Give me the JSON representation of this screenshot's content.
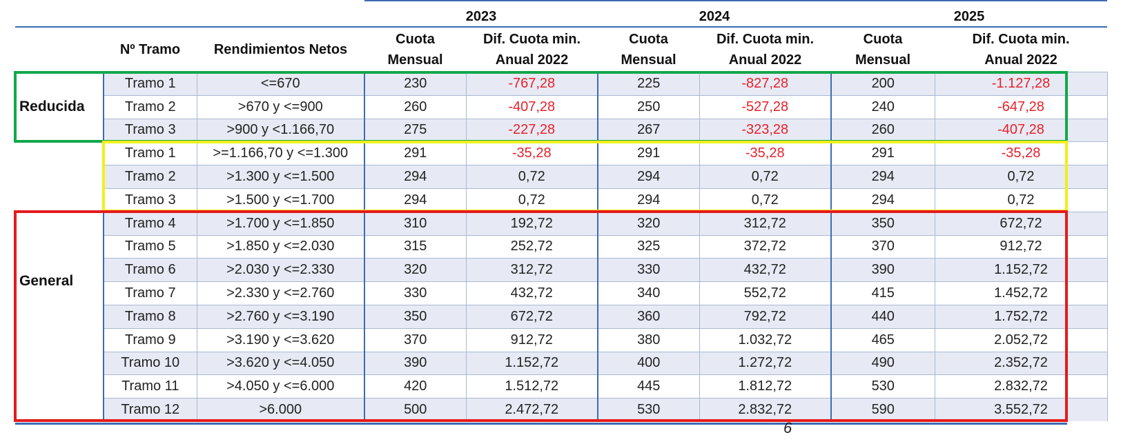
{
  "years": [
    "2023",
    "2024",
    "2025"
  ],
  "headers": {
    "tramo": "Nº Tramo",
    "rendimientos": "Rendimientos Netos",
    "cuota_l1": "Cuota",
    "cuota_l2": "Mensual",
    "dif_l1": "Dif. Cuota min.",
    "dif_l2": "Anual 2022"
  },
  "groups": {
    "reducida": "Reducida",
    "general": "General"
  },
  "rows": [
    {
      "tramo": "Tramo 1",
      "range": "<=670",
      "c2023": "230",
      "d2023": "-767,28",
      "c2024": "225",
      "d2024": "-827,28",
      "c2025": "200",
      "d2025": "-1.127,28"
    },
    {
      "tramo": "Tramo 2",
      "range": ">670 y <=900",
      "c2023": "260",
      "d2023": "-407,28",
      "c2024": "250",
      "d2024": "-527,28",
      "c2025": "240",
      "d2025": "-647,28"
    },
    {
      "tramo": "Tramo 3",
      "range": ">900 y <1.166,70",
      "c2023": "275",
      "d2023": "-227,28",
      "c2024": "267",
      "d2024": "-323,28",
      "c2025": "260",
      "d2025": "-407,28"
    },
    {
      "tramo": "Tramo 1",
      "range": ">=1.166,70 y <=1.300",
      "c2023": "291",
      "d2023": "-35,28",
      "c2024": "291",
      "d2024": "-35,28",
      "c2025": "291",
      "d2025": "-35,28"
    },
    {
      "tramo": "Tramo 2",
      "range": ">1.300 y <=1.500",
      "c2023": "294",
      "d2023": "0,72",
      "c2024": "294",
      "d2024": "0,72",
      "c2025": "294",
      "d2025": "0,72"
    },
    {
      "tramo": "Tramo 3",
      "range": ">1.500 y <=1.700",
      "c2023": "294",
      "d2023": "0,72",
      "c2024": "294",
      "d2024": "0,72",
      "c2025": "294",
      "d2025": "0,72"
    },
    {
      "tramo": "Tramo 4",
      "range": ">1.700 y <=1.850",
      "c2023": "310",
      "d2023": "192,72",
      "c2024": "320",
      "d2024": "312,72",
      "c2025": "350",
      "d2025": "672,72"
    },
    {
      "tramo": "Tramo 5",
      "range": ">1.850 y <=2.030",
      "c2023": "315",
      "d2023": "252,72",
      "c2024": "325",
      "d2024": "372,72",
      "c2025": "370",
      "d2025": "912,72"
    },
    {
      "tramo": "Tramo 6",
      "range": ">2.030 y <=2.330",
      "c2023": "320",
      "d2023": "312,72",
      "c2024": "330",
      "d2024": "432,72",
      "c2025": "390",
      "d2025": "1.152,72"
    },
    {
      "tramo": "Tramo 7",
      "range": ">2.330 y <=2.760",
      "c2023": "330",
      "d2023": "432,72",
      "c2024": "340",
      "d2024": "552,72",
      "c2025": "415",
      "d2025": "1.452,72"
    },
    {
      "tramo": "Tramo 8",
      "range": ">2.760 y <=3.190",
      "c2023": "350",
      "d2023": "672,72",
      "c2024": "360",
      "d2024": "792,72",
      "c2025": "440",
      "d2025": "1.752,72"
    },
    {
      "tramo": "Tramo 9",
      "range": ">3.190 y <=3.620",
      "c2023": "370",
      "d2023": "912,72",
      "c2024": "380",
      "d2024": "1.032,72",
      "c2025": "465",
      "d2025": "2.052,72"
    },
    {
      "tramo": "Tramo 10",
      "range": ">3.620 y <=4.050",
      "c2023": "390",
      "d2023": "1.152,72",
      "c2024": "400",
      "d2024": "1.272,72",
      "c2025": "490",
      "d2025": "2.352,72"
    },
    {
      "tramo": "Tramo 11",
      "range": ">4.050 y <=6.000",
      "c2023": "420",
      "d2023": "1.512,72",
      "c2024": "445",
      "d2024": "1.812,72",
      "c2025": "530",
      "d2025": "2.832,72"
    },
    {
      "tramo": "Tramo 12",
      "range": ">6.000",
      "c2023": "500",
      "d2023": "2.472,72",
      "c2024": "530",
      "d2024": "2.832,72",
      "c2025": "590",
      "d2025": "3.552,72"
    }
  ],
  "footnote_mark": "6",
  "colors": {
    "reducida_box": "#12a84b",
    "yellow_box": "#f2ef1a",
    "general_box": "#e41b1b",
    "negative_text": "#e8202a",
    "rule": "#3d6bb4",
    "band": "#e7eaf4"
  }
}
